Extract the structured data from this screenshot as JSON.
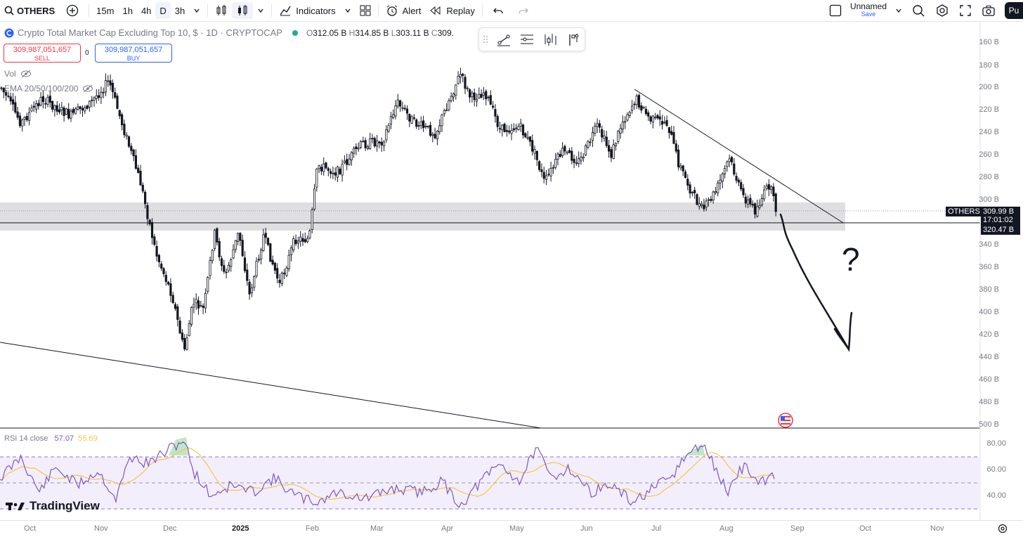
{
  "toolbar": {
    "symbol": "OTHERS",
    "intervals": [
      "15m",
      "1h",
      "4h",
      "D",
      "3h"
    ],
    "active_interval": "D",
    "indicators_label": "Indicators",
    "alert_label": "Alert",
    "replay_label": "Replay",
    "layout_name": "Unnamed",
    "save_label": "Save",
    "publish_label": "Pu"
  },
  "legend": {
    "title": "Crypto Total Market Cap Excluding Top 10, $ · 1D · CRYPTOCAP",
    "open_label": "O",
    "open": "312.05 B",
    "high_label": "H",
    "high": "314.85 B",
    "low_label": "L",
    "low": "303.11 B",
    "close_label": "C",
    "close": "309."
  },
  "trade": {
    "sell_price": "309,987,051,657",
    "sell_label": "SELL",
    "spread": "0",
    "buy_price": "309,987,051,657",
    "buy_label": "BUY"
  },
  "indicators": {
    "vol_label": "Vol",
    "ema_label": "EMA 20/50/100/200"
  },
  "price_axis": {
    "labels": [
      "160 B",
      "180 B",
      "200 B",
      "220 B",
      "240 B",
      "260 B",
      "280 B",
      "300 B",
      "340 B",
      "360 B",
      "380 B",
      "400 B",
      "420 B",
      "440 B",
      "460 B",
      "480 B",
      "500 B"
    ],
    "symbol_tag": "OTHERS",
    "current_price": "309.99 B",
    "countdown": "17:01:02",
    "line_price": "320.47 B"
  },
  "rsi": {
    "label": "RSI 14 close",
    "value": "57.07",
    "ma_value": "55.69",
    "levels": [
      "80.00",
      "60.00",
      "40.00"
    ]
  },
  "time_axis": {
    "labels": [
      "Oct",
      "Nov",
      "Dec",
      "2025",
      "Feb",
      "Mar",
      "Apr",
      "May",
      "Jun",
      "Jul",
      "Aug",
      "Sep",
      "Oct",
      "Nov"
    ]
  },
  "annotation": {
    "text": "?"
  },
  "branding": {
    "logo_text": "TradingView"
  },
  "colors": {
    "accent": "#2962ff",
    "sell": "#f23645",
    "rsi_line": "#7e57c2",
    "rsi_ma": "#f7c64b",
    "rsi_band": "#f3eefb"
  },
  "chart_data": {
    "type": "candlestick",
    "x": [
      "Oct",
      "Nov",
      "Dec",
      "2025",
      "Feb",
      "Mar",
      "Apr",
      "May",
      "Jun",
      "Jul",
      "Aug",
      "Sep"
    ],
    "support_zone": [
      300,
      330
    ],
    "current_close": 309.99,
    "rsi_levels": [
      70,
      50,
      30
    ]
  }
}
